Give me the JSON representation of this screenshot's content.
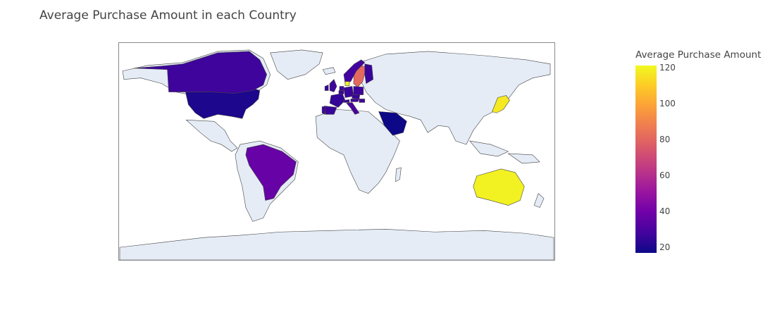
{
  "title": "Average Purchase Amount in each Country",
  "colorbar": {
    "title": "Average Purchase Amount",
    "min": 17,
    "max": 121,
    "ticks": [
      20,
      40,
      60,
      80,
      100,
      120
    ],
    "colorscale": [
      "#0d0887",
      "#46039f",
      "#7201a8",
      "#9c179e",
      "#bd3786",
      "#d8576b",
      "#ed7953",
      "#fb9f3a",
      "#fdca26",
      "#f0f921"
    ]
  },
  "land_color": "#e5ecf6",
  "border_color": "#444444",
  "chart_data": {
    "type": "choropleth",
    "projection": "equirectangular",
    "metric": "Average Purchase Amount",
    "countries": [
      {
        "name": "United States",
        "value": 20
      },
      {
        "name": "Canada",
        "value": 27
      },
      {
        "name": "Brazil",
        "value": 37
      },
      {
        "name": "Saudi Arabia",
        "value": 17
      },
      {
        "name": "Australia",
        "value": 119
      },
      {
        "name": "Japan",
        "value": 117
      },
      {
        "name": "Sweden",
        "value": 81
      },
      {
        "name": "Norway",
        "value": 28
      },
      {
        "name": "Finland",
        "value": 26
      },
      {
        "name": "United Kingdom",
        "value": 27
      },
      {
        "name": "Germany",
        "value": 26
      },
      {
        "name": "France",
        "value": 25
      },
      {
        "name": "Spain",
        "value": 26
      },
      {
        "name": "Portugal",
        "value": 26
      },
      {
        "name": "Italy",
        "value": 29
      },
      {
        "name": "Poland",
        "value": 27
      },
      {
        "name": "Netherlands",
        "value": 27
      },
      {
        "name": "Belgium",
        "value": 26
      },
      {
        "name": "Denmark",
        "value": 119
      },
      {
        "name": "Austria",
        "value": 27
      },
      {
        "name": "Czech Republic",
        "value": 26
      },
      {
        "name": "Hungary",
        "value": 28
      },
      {
        "name": "Ireland",
        "value": 25
      },
      {
        "name": "Switzerland",
        "value": 26
      }
    ]
  }
}
